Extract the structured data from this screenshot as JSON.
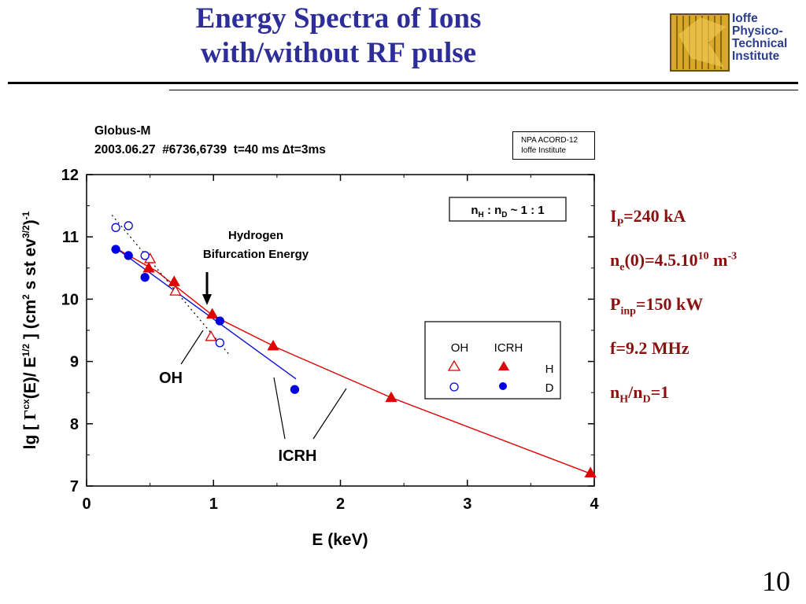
{
  "slide": {
    "title_line1": "Energy Spectra of Ions",
    "title_line2": "with/without RF pulse",
    "page_number": "10",
    "logo_lines": [
      "Ioffe",
      "Physico-",
      "Technical",
      "Institute"
    ],
    "colors": {
      "title": "#2e2e9a",
      "params": "#8b1010",
      "logo_text": "#2a3d8f",
      "logo_gold": "#d8a826"
    }
  },
  "header": {
    "line1": "Globus-M",
    "line2": "2003.06.27  #6736,6739  t=40 ms ∆t=3ms"
  },
  "npa_box": {
    "line1": "NPA ACORD-12",
    "line2": "Ioffe Institute"
  },
  "params": {
    "ip": {
      "base": "I",
      "sub": "P",
      "rest": "=240 kA"
    },
    "ne": {
      "base": "n",
      "sub": "e",
      "mid": "(0)=4.5.10",
      "sup": "10",
      "rest": " m",
      "sup2": "-3"
    },
    "pinp": {
      "base": "P",
      "sub": "inp",
      "rest": "=150 kW"
    },
    "freq": {
      "text": "f=9.2 MHz"
    },
    "ratio": {
      "a": "n",
      "a_sub": "H",
      "slash": "/n",
      "b_sub": "D",
      "rest": "=1"
    }
  },
  "chart_data": {
    "type": "scatter",
    "xlabel": "E (keV)",
    "ylabel": "lg [ Γcx(E)/ E1/2 ] (cm2 s st ev3/2)-1",
    "xlim": [
      0,
      4
    ],
    "ylim": [
      7,
      12
    ],
    "x_ticks": [
      "0",
      "1",
      "2",
      "3",
      "4"
    ],
    "y_ticks": [
      "7",
      "8",
      "9",
      "10",
      "11",
      "12"
    ],
    "ratio_label": "nH : nD ~ 1 : 1",
    "legend": {
      "col1": "OH",
      "col2": "ICRH",
      "row1": "H",
      "row2": "D",
      "placement": "center-right"
    },
    "annotations": {
      "bifurcation": [
        "Hydrogen",
        "Bifurcation Energy"
      ],
      "oh": "OH",
      "icrh": "ICRH"
    },
    "series": [
      {
        "name": "H OH",
        "marker": "triangle-open",
        "color": "#e00000",
        "points": [
          [
            0.5,
            10.65
          ],
          [
            0.7,
            10.13
          ],
          [
            0.98,
            9.4
          ]
        ]
      },
      {
        "name": "H ICRH",
        "marker": "triangle-filled",
        "color": "#e00000",
        "points": [
          [
            0.49,
            10.5
          ],
          [
            0.69,
            10.28
          ],
          [
            0.99,
            9.76
          ],
          [
            1.47,
            9.25
          ],
          [
            2.4,
            8.42
          ],
          [
            3.97,
            7.21
          ]
        ]
      },
      {
        "name": "D OH",
        "marker": "circle-open",
        "color": "#0000e0",
        "points": [
          [
            0.23,
            11.15
          ],
          [
            0.33,
            11.18
          ],
          [
            0.46,
            10.7
          ],
          [
            1.05,
            9.3
          ]
        ]
      },
      {
        "name": "D ICRH",
        "marker": "circle-filled",
        "color": "#0000e0",
        "points": [
          [
            0.23,
            10.8
          ],
          [
            0.33,
            10.7
          ],
          [
            0.46,
            10.35
          ],
          [
            1.05,
            9.65
          ],
          [
            1.64,
            8.55
          ]
        ]
      }
    ],
    "fit_lines": [
      {
        "name": "H ICRH fit",
        "color": "#e00000",
        "points": [
          [
            0.23,
            10.82
          ],
          [
            0.55,
            10.45
          ],
          [
            1.0,
            9.73
          ],
          [
            1.5,
            9.22
          ],
          [
            2.4,
            8.42
          ],
          [
            3.97,
            7.2
          ]
        ]
      },
      {
        "name": "D ICRH fit",
        "color": "#1010d0",
        "points": [
          [
            0.23,
            10.82
          ],
          [
            1.65,
            8.72
          ]
        ]
      },
      {
        "name": "OH fit",
        "color": "#000000",
        "points": [
          [
            0.2,
            11.35
          ],
          [
            1.12,
            9.12
          ]
        ]
      }
    ]
  }
}
